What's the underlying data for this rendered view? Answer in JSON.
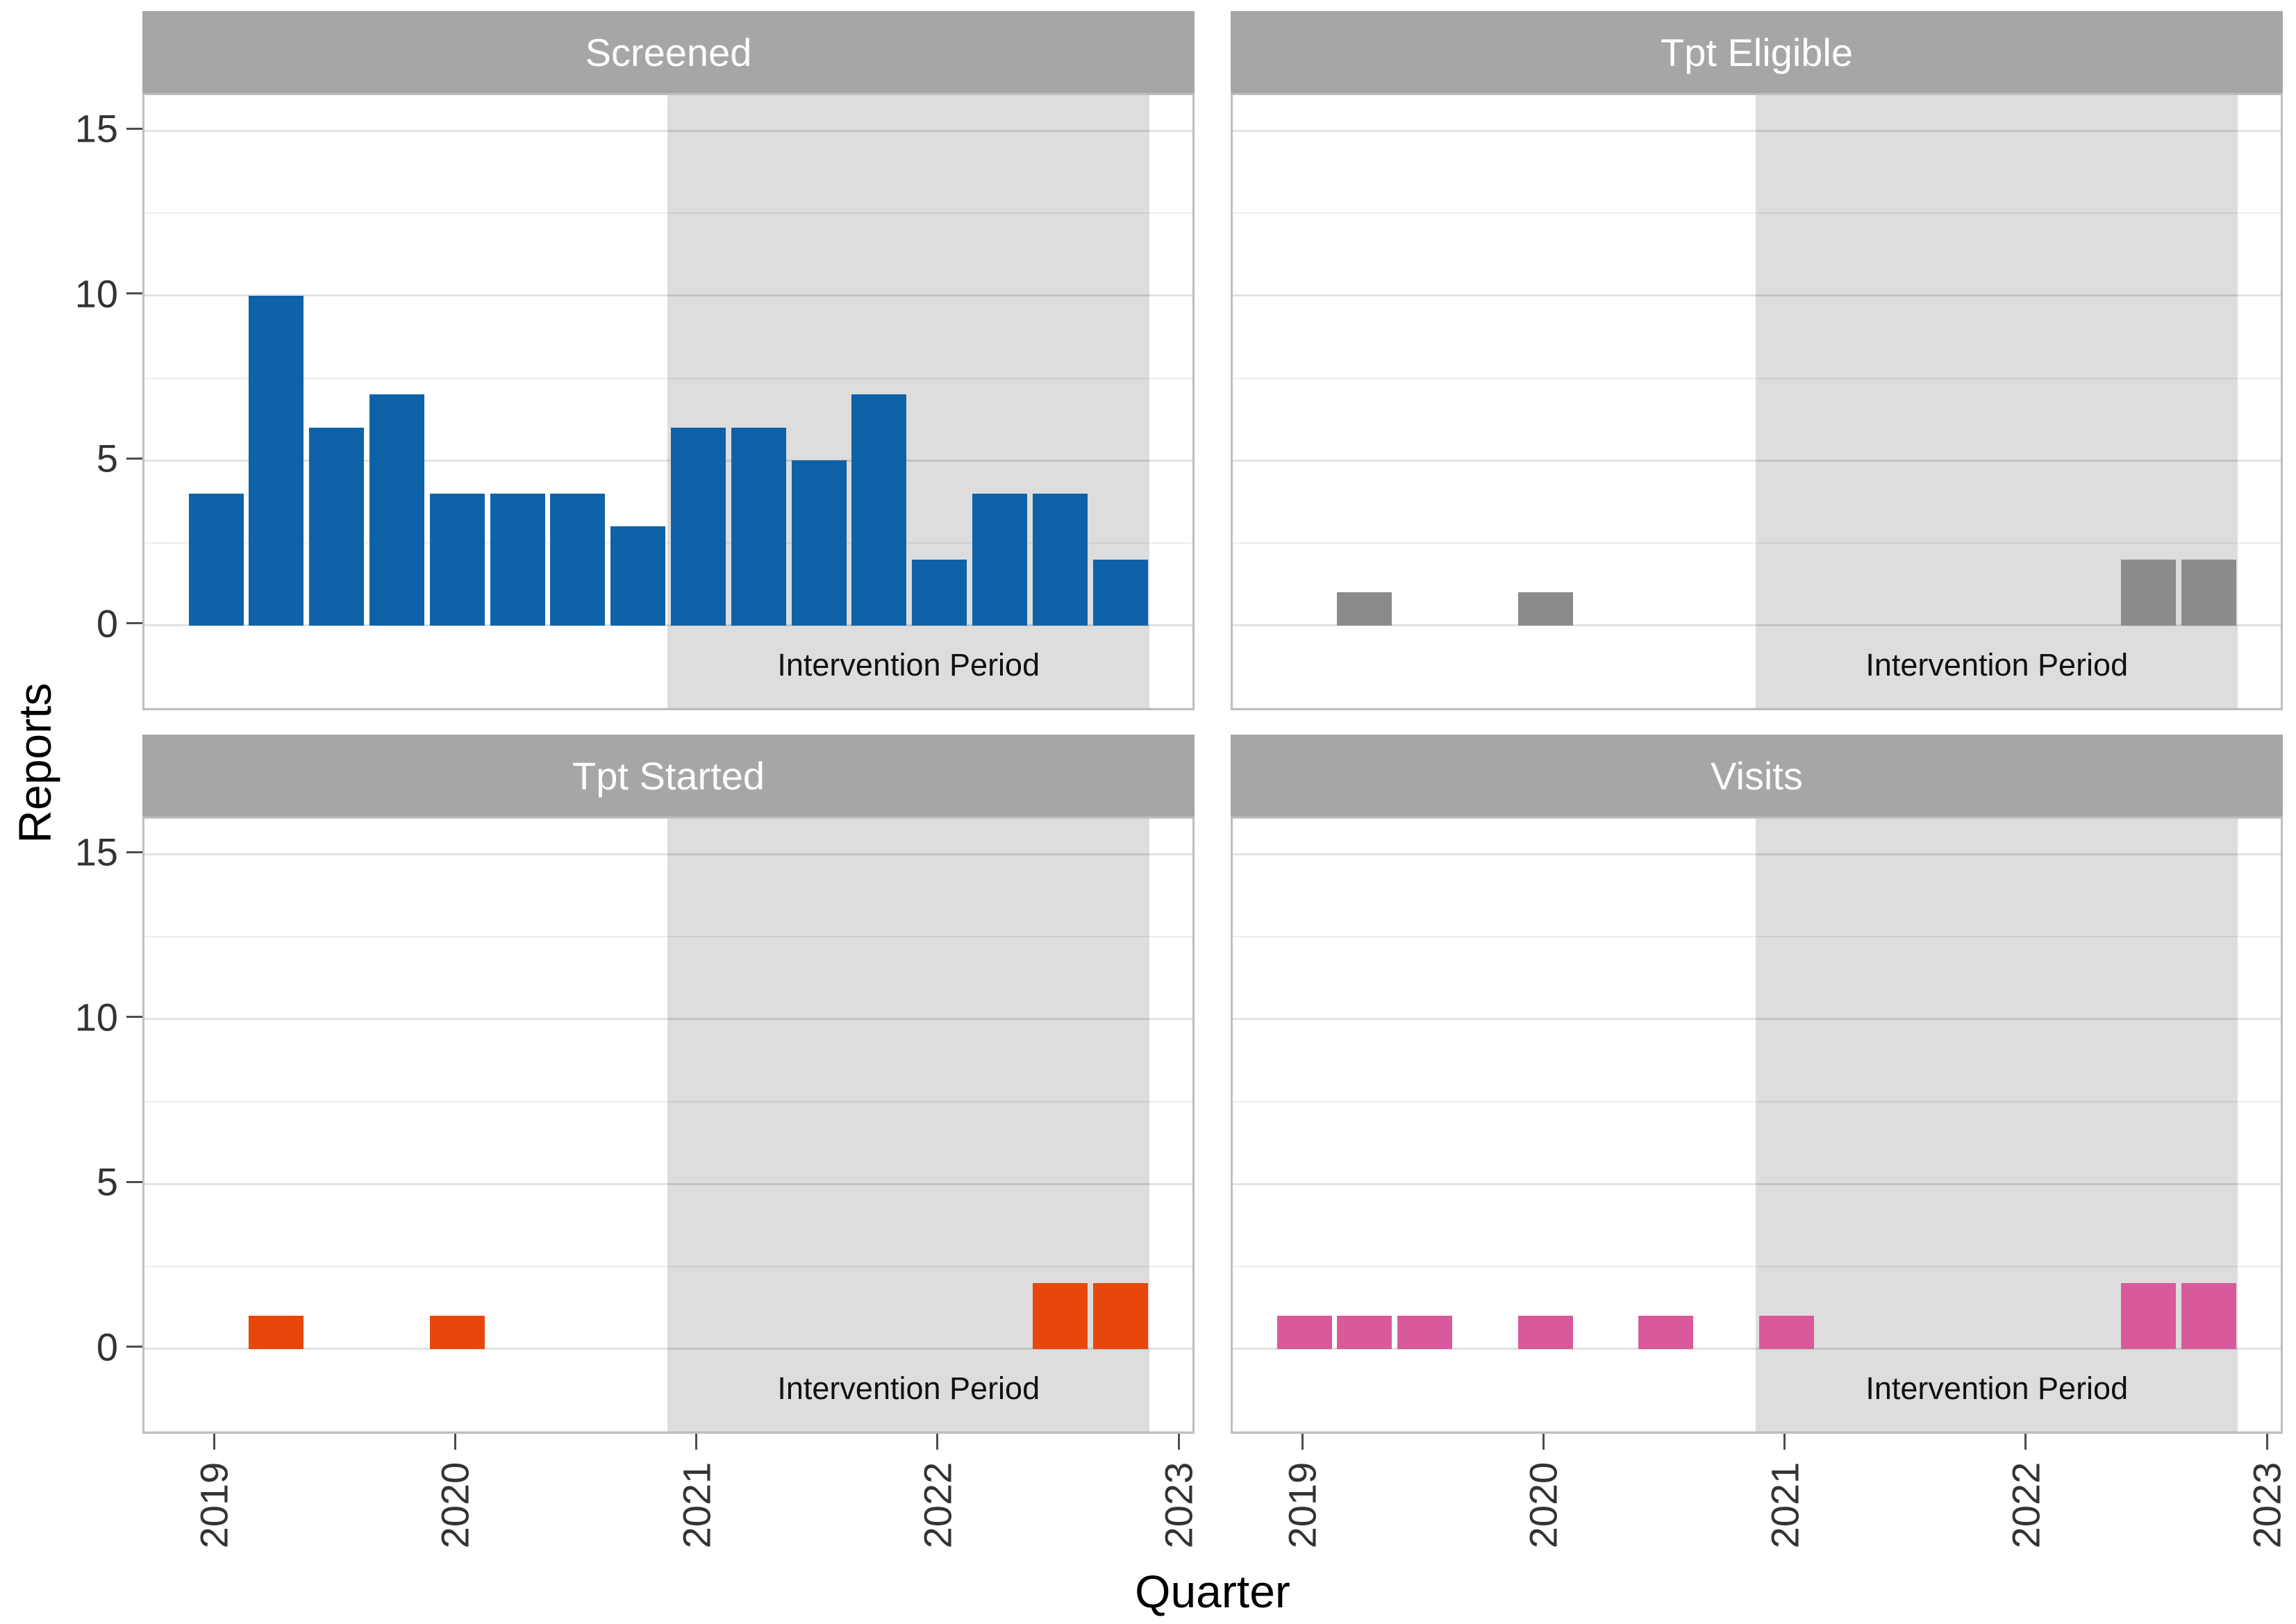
{
  "chart_data": {
    "type": "bar",
    "title": "",
    "xlabel": "Quarter",
    "ylabel": "Reports",
    "categories": [
      "2019 Q1",
      "2019 Q2",
      "2019 Q3",
      "2019 Q4",
      "2020 Q1",
      "2020 Q2",
      "2020 Q3",
      "2020 Q4",
      "2021 Q1",
      "2021 Q2",
      "2021 Q3",
      "2021 Q4",
      "2022 Q1",
      "2022 Q2",
      "2022 Q3",
      "2022 Q4"
    ],
    "x_tick_labels": [
      "2019",
      "2020",
      "2021",
      "2022",
      "2023"
    ],
    "y_tick_labels": [
      "0",
      "5",
      "10",
      "15"
    ],
    "y_tick_values": [
      0,
      5,
      10,
      15
    ],
    "y_minor_gridlines": [
      -2.5,
      2.5,
      7.5,
      12.5
    ],
    "ylim": [
      0,
      15
    ],
    "grid": true,
    "legend_position": "none",
    "facets": [
      {
        "label": "Screened",
        "color": "#0E62A8",
        "values": [
          4,
          10,
          6,
          7,
          4,
          4,
          4,
          3,
          6,
          6,
          5,
          7,
          2,
          4,
          4,
          2
        ]
      },
      {
        "label": "Tpt Eligible",
        "color": "#8B8B8B",
        "values": [
          0,
          1,
          0,
          0,
          1,
          0,
          0,
          0,
          0,
          0,
          0,
          0,
          0,
          0,
          2,
          2
        ]
      },
      {
        "label": "Tpt Started",
        "color": "#E8470C",
        "values": [
          0,
          1,
          0,
          0,
          1,
          0,
          0,
          0,
          0,
          0,
          0,
          0,
          0,
          0,
          2,
          2
        ]
      },
      {
        "label": "Visits",
        "color": "#D85A9C",
        "values": [
          1,
          1,
          1,
          0,
          1,
          0,
          1,
          0,
          1,
          0,
          0,
          0,
          0,
          0,
          2,
          2
        ]
      }
    ],
    "annotation": {
      "label": "Intervention Period",
      "start": "2020-11-15",
      "end": "2022-11-15"
    },
    "colors": {
      "strip_bg": "#A6A6A6",
      "strip_text": "#FFFFFF",
      "shade": "rgba(0,0,0,0.135)",
      "panel_border": "#BEBEBE",
      "grid_major": "#E2E2E2",
      "grid_minor": "#EDEDED",
      "tick_mark": "#4D4D4D",
      "tick_label": "#333333",
      "axis_title": "#000000",
      "annotation_text": "#111111"
    }
  }
}
